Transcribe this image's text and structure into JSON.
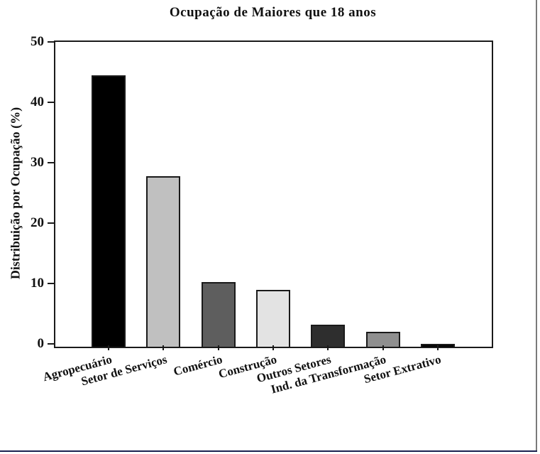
{
  "frame": {
    "right_border_color": "#7a7a7a",
    "bottom_border_color": "#1a2050"
  },
  "chart_data": {
    "type": "bar",
    "title": "Ocupação de Maiores que 18 anos",
    "xlabel": "",
    "ylabel": "Distribuição por Ocupação (%)",
    "categories": [
      "Agropecuário",
      "Setor de Serviços",
      "Comércio",
      "Construção",
      "Outros Setores",
      "Ind. da Transformação",
      "Setor Extrativo"
    ],
    "values": [
      44.9,
      28.2,
      10.7,
      9.4,
      3.6,
      2.5,
      0.5
    ],
    "bar_colors": [
      "#000000",
      "#c0c0c0",
      "#5e5e5e",
      "#e3e3e3",
      "#2e2e2e",
      "#8f8f8f",
      "#000000"
    ],
    "bar_border_color": "#1a1a1a",
    "ylim": [
      0,
      50
    ],
    "yticks": [
      0,
      10,
      20,
      30,
      40,
      50
    ],
    "grid": false,
    "legend": "none",
    "x_label_rotation_deg": -15,
    "plot_background": "#ffffff"
  }
}
